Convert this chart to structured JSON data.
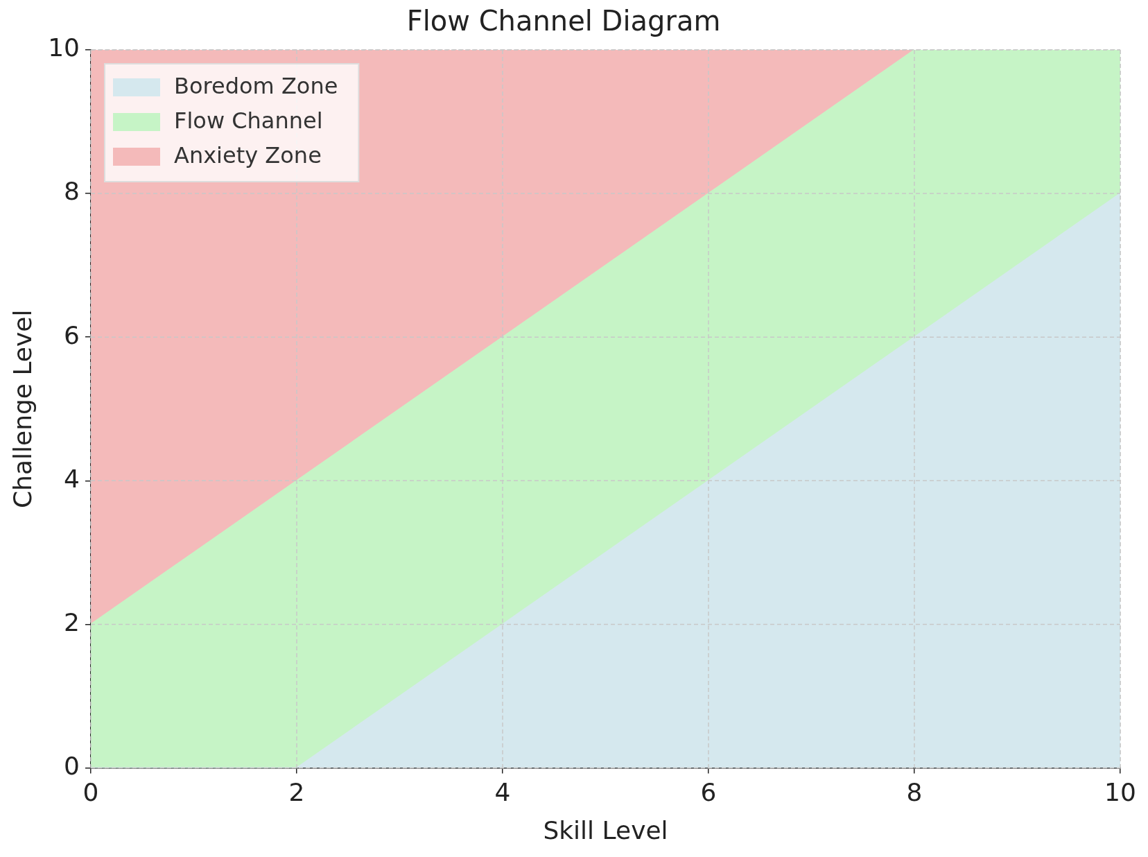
{
  "chart_data": {
    "type": "area",
    "title": "Flow Channel Diagram",
    "xlabel": "Skill Level",
    "ylabel": "Challenge Level",
    "x": [
      0,
      2,
      4,
      6,
      8,
      10
    ],
    "stacked": true,
    "series": [
      {
        "name": "Boredom Zone",
        "color": "#d5e8ee",
        "values": [
          0,
          0,
          2,
          4,
          6,
          8
        ]
      },
      {
        "name": "Flow Channel",
        "color": "#c6f4c6",
        "values": [
          2,
          4,
          4,
          4,
          4,
          2
        ]
      },
      {
        "name": "Anxiety Zone",
        "color": "#f4baba",
        "values": [
          8,
          6,
          4,
          2,
          0,
          0
        ]
      }
    ],
    "xlim": [
      0,
      10
    ],
    "xticks": [
      0,
      2,
      4,
      6,
      8,
      10
    ],
    "ylim": [
      0,
      10
    ],
    "yticks": [
      0,
      2,
      4,
      6,
      8,
      10
    ],
    "grid": true,
    "legend": "top left"
  }
}
